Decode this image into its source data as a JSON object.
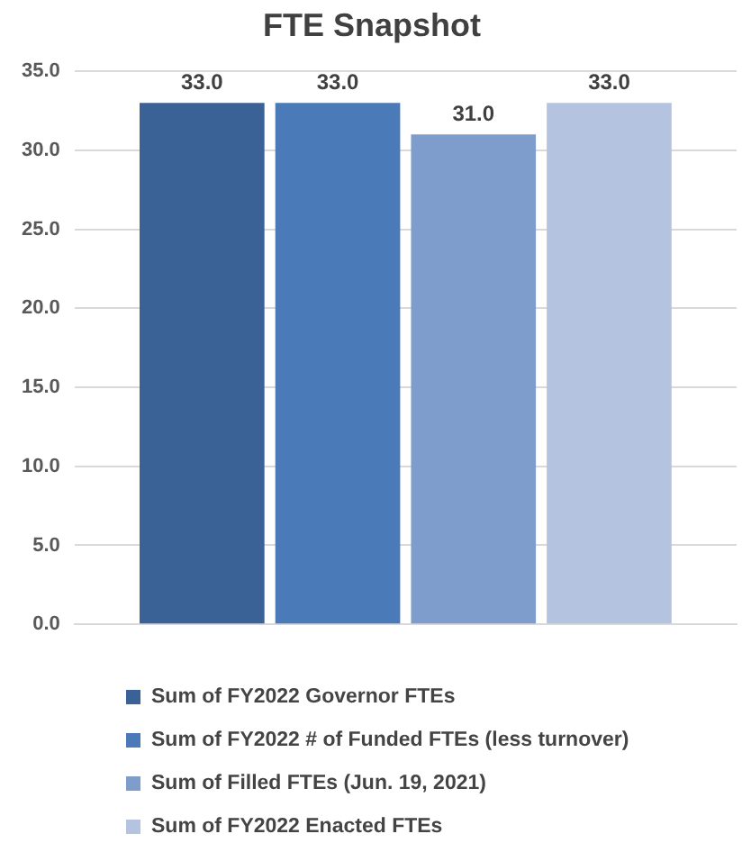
{
  "chart_data": {
    "type": "bar",
    "title": "FTE Snapshot",
    "categories": [
      null
    ],
    "series": [
      {
        "name": "Sum of FY2022 Governor FTEs",
        "color": "#3a6296",
        "values": [
          33
        ],
        "value_labels": [
          "33.0"
        ]
      },
      {
        "name": "Sum of FY2022 # of Funded FTEs (less turnover)",
        "color": "#4a7ab8",
        "values": [
          33
        ],
        "value_labels": [
          "33.0"
        ]
      },
      {
        "name": "Sum of Filled FTEs (Jun. 19, 2021)",
        "color": "#7f9dcc",
        "values": [
          31
        ],
        "value_labels": [
          "31.0"
        ]
      },
      {
        "name": "Sum of FY2022 Enacted FTEs",
        "color": "#b4c4e0",
        "values": [
          33
        ],
        "value_labels": [
          "33.0"
        ]
      }
    ],
    "ylim": [
      0,
      35
    ],
    "yticks": [
      {
        "value": 0,
        "label": "0.0"
      },
      {
        "value": 5,
        "label": "5.0"
      },
      {
        "value": 10,
        "label": "10.0"
      },
      {
        "value": 15,
        "label": "15.0"
      },
      {
        "value": 20,
        "label": "20.0"
      },
      {
        "value": 25,
        "label": "25.0"
      },
      {
        "value": 30,
        "label": "30.0"
      },
      {
        "value": 35,
        "label": "35.0"
      }
    ],
    "grid": "y",
    "legend": "bottom"
  }
}
